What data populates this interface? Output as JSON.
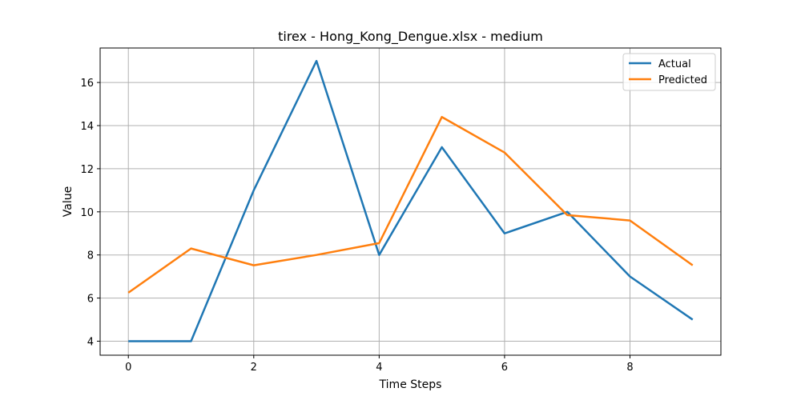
{
  "chart_data": {
    "type": "line",
    "title": "tirex - Hong_Kong_Dengue.xlsx - medium",
    "xlabel": "Time Steps",
    "ylabel": "Value",
    "x": [
      0,
      1,
      2,
      3,
      4,
      5,
      6,
      7,
      8,
      9
    ],
    "xlim": [
      -0.45,
      9.45
    ],
    "ylim": [
      3.35,
      17.6
    ],
    "xticks": [
      0,
      2,
      4,
      6,
      8
    ],
    "yticks": [
      4,
      6,
      8,
      10,
      12,
      14,
      16
    ],
    "grid": true,
    "legend_position": "top-right",
    "series": [
      {
        "name": "Actual",
        "color": "#1f77b4",
        "values": [
          4,
          4,
          11,
          17,
          8,
          13,
          9,
          10,
          7,
          5
        ]
      },
      {
        "name": "Predicted",
        "color": "#ff7f0e",
        "values": [
          6.25,
          8.3,
          7.52,
          8.0,
          8.55,
          14.4,
          12.75,
          9.85,
          9.6,
          7.52
        ]
      }
    ]
  }
}
